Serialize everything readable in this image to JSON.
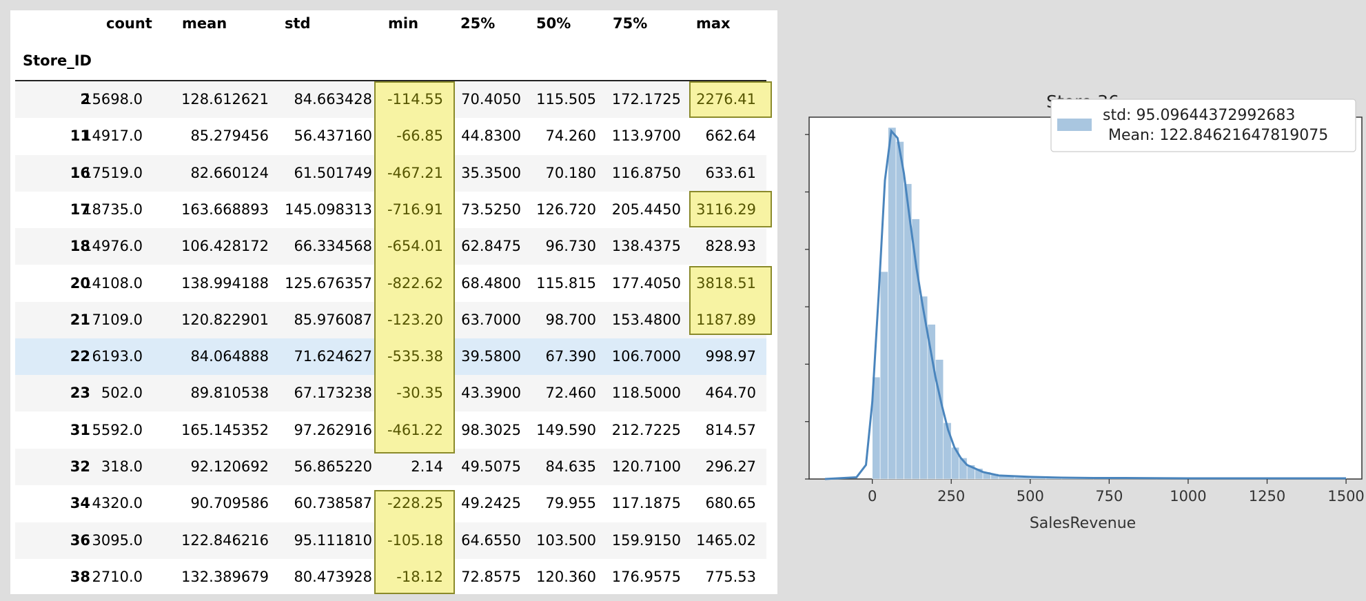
{
  "table": {
    "columns": [
      "count",
      "mean",
      "std",
      "min",
      "25%",
      "50%",
      "75%",
      "max"
    ],
    "index_name": "Store_ID",
    "rows": [
      {
        "id": "2",
        "count": "15698.0",
        "mean": "128.612621",
        "std": "84.663428",
        "min": "-114.55",
        "p25": "70.4050",
        "p50": "115.505",
        "p75": "172.1725",
        "max": "2276.41"
      },
      {
        "id": "11",
        "count": "14917.0",
        "mean": "85.279456",
        "std": "56.437160",
        "min": "-66.85",
        "p25": "44.8300",
        "p50": "74.260",
        "p75": "113.9700",
        "max": "662.64"
      },
      {
        "id": "16",
        "count": "17519.0",
        "mean": "82.660124",
        "std": "61.501749",
        "min": "-467.21",
        "p25": "35.3500",
        "p50": "70.180",
        "p75": "116.8750",
        "max": "633.61"
      },
      {
        "id": "17",
        "count": "18735.0",
        "mean": "163.668893",
        "std": "145.098313",
        "min": "-716.91",
        "p25": "73.5250",
        "p50": "126.720",
        "p75": "205.4450",
        "max": "3116.29"
      },
      {
        "id": "18",
        "count": "14976.0",
        "mean": "106.428172",
        "std": "66.334568",
        "min": "-654.01",
        "p25": "62.8475",
        "p50": "96.730",
        "p75": "138.4375",
        "max": "828.93"
      },
      {
        "id": "20",
        "count": "14108.0",
        "mean": "138.994188",
        "std": "125.676357",
        "min": "-822.62",
        "p25": "68.4800",
        "p50": "115.815",
        "p75": "177.4050",
        "max": "3818.51"
      },
      {
        "id": "21",
        "count": "7109.0",
        "mean": "120.822901",
        "std": "85.976087",
        "min": "-123.20",
        "p25": "63.7000",
        "p50": "98.700",
        "p75": "153.4800",
        "max": "1187.89"
      },
      {
        "id": "22",
        "count": "6193.0",
        "mean": "84.064888",
        "std": "71.624627",
        "min": "-535.38",
        "p25": "39.5800",
        "p50": "67.390",
        "p75": "106.7000",
        "max": "998.97"
      },
      {
        "id": "23",
        "count": "502.0",
        "mean": "89.810538",
        "std": "67.173238",
        "min": "-30.35",
        "p25": "43.3900",
        "p50": "72.460",
        "p75": "118.5000",
        "max": "464.70"
      },
      {
        "id": "31",
        "count": "5592.0",
        "mean": "165.145352",
        "std": "97.262916",
        "min": "-461.22",
        "p25": "98.3025",
        "p50": "149.590",
        "p75": "212.7225",
        "max": "814.57"
      },
      {
        "id": "32",
        "count": "318.0",
        "mean": "92.120692",
        "std": "56.865220",
        "min": "2.14",
        "p25": "49.5075",
        "p50": "84.635",
        "p75": "120.7100",
        "max": "296.27"
      },
      {
        "id": "34",
        "count": "4320.0",
        "mean": "90.709586",
        "std": "60.738587",
        "min": "-228.25",
        "p25": "49.2425",
        "p50": "79.955",
        "p75": "117.1875",
        "max": "680.65"
      },
      {
        "id": "36",
        "count": "3095.0",
        "mean": "122.846216",
        "std": "95.111810",
        "min": "-105.18",
        "p25": "64.6550",
        "p50": "103.500",
        "p75": "159.9150",
        "max": "1465.02"
      },
      {
        "id": "38",
        "count": "2710.0",
        "mean": "132.389679",
        "std": "80.473928",
        "min": "-18.12",
        "p25": "72.8575",
        "p50": "120.360",
        "p75": "176.9575",
        "max": "775.53"
      }
    ]
  },
  "colors": {
    "highlight_fill": "#f7f3a3",
    "highlight_border": "#8a8a2a",
    "hover_row": "#dcebf8",
    "hist_fill": "#a9c6e0",
    "kde_line": "#4a85bd"
  },
  "chart_data": {
    "type": "histogram",
    "title": "Store 36",
    "xlabel": "SalesRevenue",
    "ylabel": "",
    "xlim": [
      -200,
      1550
    ],
    "x_ticks": [
      0,
      250,
      500,
      750,
      1000,
      1250,
      1500
    ],
    "y_tick_count": 7,
    "y_tick_labels_shown": false,
    "legend": {
      "text_line1": "std: 95.09644372992683",
      "text_line2": "Mean: 122.84621647819075",
      "position": "top-right"
    },
    "bin_width": 25,
    "bins": [
      {
        "x0": 0,
        "x1": 25,
        "h": 0.29
      },
      {
        "x0": 25,
        "x1": 50,
        "h": 0.59
      },
      {
        "x0": 50,
        "x1": 75,
        "h": 1.0
      },
      {
        "x0": 75,
        "x1": 100,
        "h": 0.96
      },
      {
        "x0": 100,
        "x1": 125,
        "h": 0.84
      },
      {
        "x0": 125,
        "x1": 150,
        "h": 0.74
      },
      {
        "x0": 150,
        "x1": 175,
        "h": 0.52
      },
      {
        "x0": 175,
        "x1": 200,
        "h": 0.44
      },
      {
        "x0": 200,
        "x1": 225,
        "h": 0.34
      },
      {
        "x0": 225,
        "x1": 250,
        "h": 0.16
      },
      {
        "x0": 250,
        "x1": 275,
        "h": 0.09
      },
      {
        "x0": 275,
        "x1": 300,
        "h": 0.06
      },
      {
        "x0": 300,
        "x1": 325,
        "h": 0.04
      },
      {
        "x0": 325,
        "x1": 350,
        "h": 0.03
      },
      {
        "x0": 350,
        "x1": 375,
        "h": 0.02
      },
      {
        "x0": 375,
        "x1": 400,
        "h": 0.015
      },
      {
        "x0": 400,
        "x1": 450,
        "h": 0.008
      },
      {
        "x0": 450,
        "x1": 500,
        "h": 0.005
      },
      {
        "x0": 500,
        "x1": 550,
        "h": 0.006
      },
      {
        "x0": 550,
        "x1": 600,
        "h": 0.004
      },
      {
        "x0": 600,
        "x1": 700,
        "h": 0.003
      },
      {
        "x0": 700,
        "x1": 900,
        "h": 0.003
      },
      {
        "x0": 900,
        "x1": 1500,
        "h": 0.002
      }
    ],
    "kde": {
      "x": [
        -150,
        -50,
        -20,
        0,
        20,
        40,
        60,
        80,
        100,
        120,
        140,
        160,
        180,
        200,
        220,
        240,
        260,
        280,
        300,
        350,
        400,
        500,
        600,
        700,
        800,
        1000,
        1200,
        1400,
        1500
      ],
      "y": [
        0,
        0.005,
        0.04,
        0.22,
        0.52,
        0.85,
        0.99,
        0.97,
        0.87,
        0.73,
        0.6,
        0.49,
        0.39,
        0.29,
        0.21,
        0.14,
        0.09,
        0.06,
        0.04,
        0.02,
        0.01,
        0.006,
        0.004,
        0.003,
        0.003,
        0.002,
        0.002,
        0.002,
        0.002
      ]
    }
  }
}
